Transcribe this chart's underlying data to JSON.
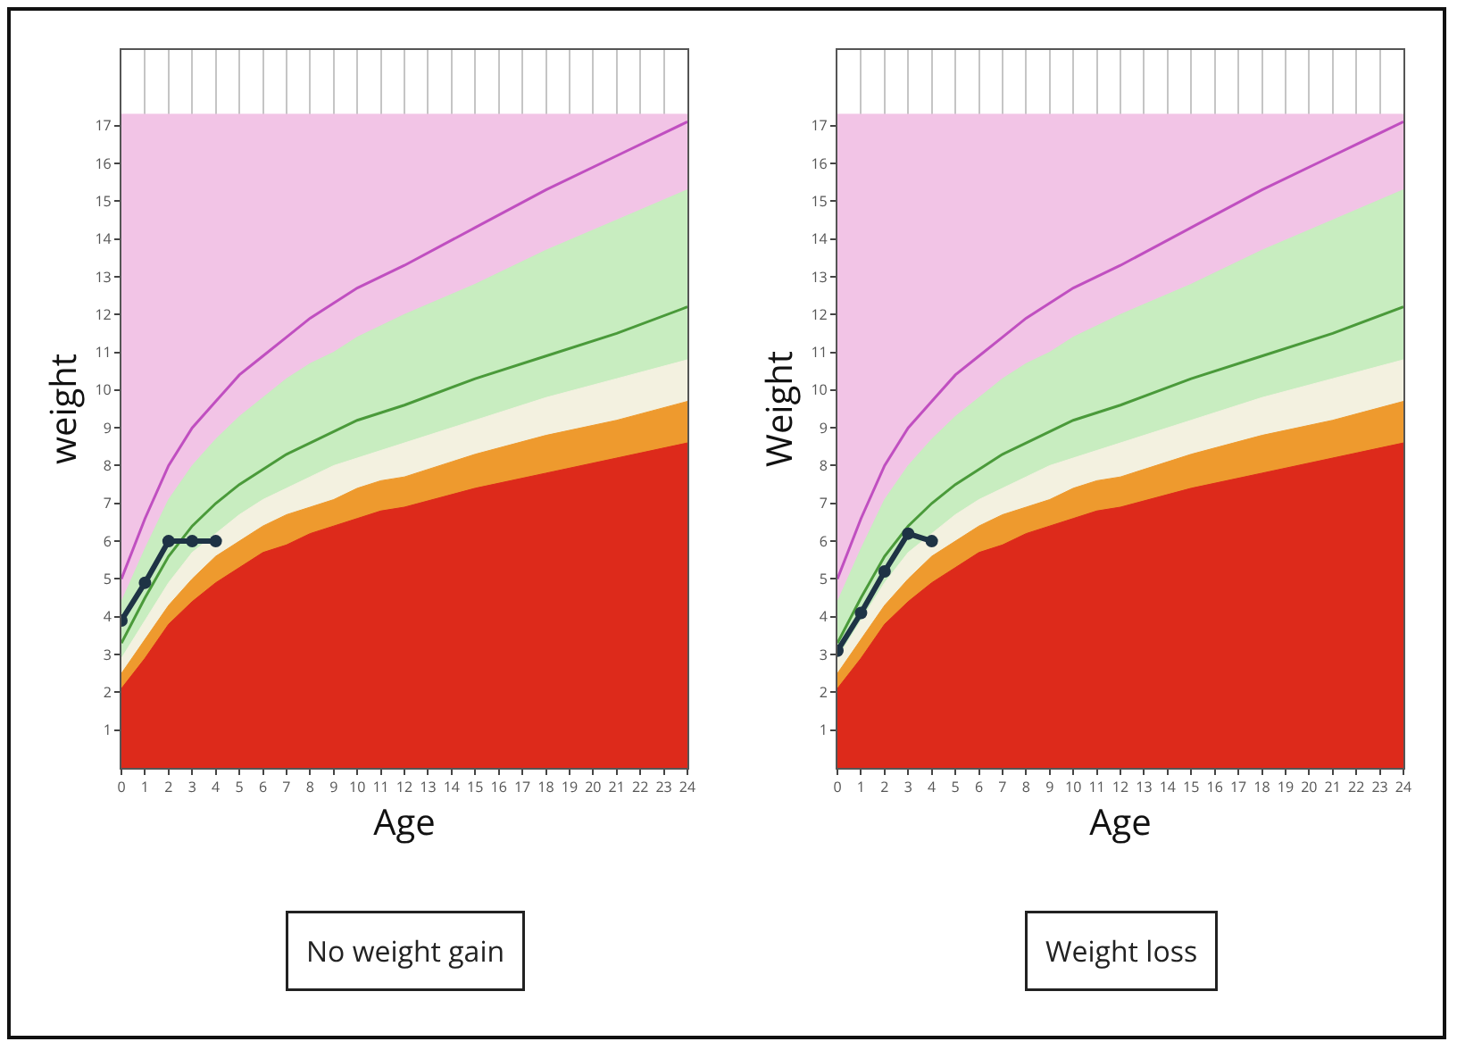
{
  "chart_data": [
    {
      "type": "area",
      "title": "No weight gain",
      "xlabel": "Age",
      "ylabel": "weight",
      "x": [
        0,
        1,
        2,
        3,
        4,
        5,
        6,
        7,
        8,
        9,
        10,
        11,
        12,
        15,
        18,
        21,
        24
      ],
      "xlim": [
        0,
        24
      ],
      "ylim": [
        0,
        19
      ],
      "xticks": [
        0,
        1,
        2,
        3,
        4,
        5,
        6,
        7,
        8,
        9,
        10,
        11,
        12,
        13,
        14,
        15,
        16,
        17,
        18,
        19,
        20,
        21,
        22,
        23,
        24
      ],
      "yticks": [
        1,
        2,
        3,
        4,
        5,
        6,
        7,
        8,
        9,
        10,
        11,
        12,
        13,
        14,
        15,
        16,
        17
      ],
      "grid": true,
      "series": [
        {
          "color": "#f2c4e6",
          "values": [
            17.3,
            17.3,
            17.3,
            17.3,
            17.3,
            17.3,
            17.3,
            17.3,
            17.3,
            17.3,
            17.3,
            17.3,
            17.3,
            17.3,
            17.3,
            17.3,
            17.3
          ]
        },
        {
          "color": "#c8edc0",
          "values": [
            4.4,
            5.8,
            7.1,
            8.0,
            8.7,
            9.3,
            9.8,
            10.3,
            10.7,
            11.0,
            11.4,
            11.7,
            12.0,
            12.8,
            13.7,
            14.5,
            15.3
          ]
        },
        {
          "color": "#f3f1e0",
          "values": [
            2.9,
            3.9,
            4.9,
            5.7,
            6.2,
            6.7,
            7.1,
            7.4,
            7.7,
            8.0,
            8.2,
            8.4,
            8.6,
            9.2,
            9.8,
            10.3,
            10.8
          ]
        },
        {
          "color": "#ee9a2e",
          "values": [
            2.5,
            3.4,
            4.3,
            5.0,
            5.6,
            6.0,
            6.4,
            6.7,
            6.9,
            7.1,
            7.4,
            7.6,
            7.7,
            8.3,
            8.8,
            9.2,
            9.7
          ]
        },
        {
          "color": "#dd2a1b",
          "values": [
            2.1,
            2.9,
            3.8,
            4.4,
            4.9,
            5.3,
            5.7,
            5.9,
            6.2,
            6.4,
            6.6,
            6.8,
            6.9,
            7.4,
            7.8,
            8.2,
            8.6
          ]
        },
        {
          "type": "line",
          "color": "#c04fc0",
          "values": [
            5.0,
            6.6,
            8.0,
            9.0,
            9.7,
            10.4,
            10.9,
            11.4,
            11.9,
            12.3,
            12.7,
            13.0,
            13.3,
            14.3,
            15.3,
            16.2,
            17.1
          ]
        },
        {
          "type": "line",
          "color": "#4a9a3a",
          "values": [
            3.3,
            4.5,
            5.6,
            6.4,
            7.0,
            7.5,
            7.9,
            8.3,
            8.6,
            8.9,
            9.2,
            9.4,
            9.6,
            10.3,
            10.9,
            11.5,
            12.2
          ]
        },
        {
          "type": "line",
          "color": "#1e3345",
          "marker": "circle",
          "x": [
            0,
            1,
            2,
            3,
            4
          ],
          "values": [
            3.9,
            4.9,
            6.0,
            6.0,
            6.0
          ]
        }
      ]
    },
    {
      "type": "area",
      "title": "Weight loss",
      "xlabel": "Age",
      "ylabel": "Weight",
      "x": [
        0,
        1,
        2,
        3,
        4,
        5,
        6,
        7,
        8,
        9,
        10,
        11,
        12,
        15,
        18,
        21,
        24
      ],
      "xlim": [
        0,
        24
      ],
      "ylim": [
        0,
        19
      ],
      "xticks": [
        0,
        1,
        2,
        3,
        4,
        5,
        6,
        7,
        8,
        9,
        10,
        11,
        12,
        13,
        14,
        15,
        16,
        17,
        18,
        19,
        20,
        21,
        22,
        23,
        24
      ],
      "yticks": [
        1,
        2,
        3,
        4,
        5,
        6,
        7,
        8,
        9,
        10,
        11,
        12,
        13,
        14,
        15,
        16,
        17
      ],
      "grid": true,
      "series": [
        {
          "color": "#f2c4e6",
          "values": [
            17.3,
            17.3,
            17.3,
            17.3,
            17.3,
            17.3,
            17.3,
            17.3,
            17.3,
            17.3,
            17.3,
            17.3,
            17.3,
            17.3,
            17.3,
            17.3,
            17.3
          ]
        },
        {
          "color": "#c8edc0",
          "values": [
            4.4,
            5.8,
            7.1,
            8.0,
            8.7,
            9.3,
            9.8,
            10.3,
            10.7,
            11.0,
            11.4,
            11.7,
            12.0,
            12.8,
            13.7,
            14.5,
            15.3
          ]
        },
        {
          "color": "#f3f1e0",
          "values": [
            2.9,
            3.9,
            4.9,
            5.7,
            6.2,
            6.7,
            7.1,
            7.4,
            7.7,
            8.0,
            8.2,
            8.4,
            8.6,
            9.2,
            9.8,
            10.3,
            10.8
          ]
        },
        {
          "color": "#ee9a2e",
          "values": [
            2.5,
            3.4,
            4.3,
            5.0,
            5.6,
            6.0,
            6.4,
            6.7,
            6.9,
            7.1,
            7.4,
            7.6,
            7.7,
            8.3,
            8.8,
            9.2,
            9.7
          ]
        },
        {
          "color": "#dd2a1b",
          "values": [
            2.1,
            2.9,
            3.8,
            4.4,
            4.9,
            5.3,
            5.7,
            5.9,
            6.2,
            6.4,
            6.6,
            6.8,
            6.9,
            7.4,
            7.8,
            8.2,
            8.6
          ]
        },
        {
          "type": "line",
          "color": "#c04fc0",
          "values": [
            5.0,
            6.6,
            8.0,
            9.0,
            9.7,
            10.4,
            10.9,
            11.4,
            11.9,
            12.3,
            12.7,
            13.0,
            13.3,
            14.3,
            15.3,
            16.2,
            17.1
          ]
        },
        {
          "type": "line",
          "color": "#4a9a3a",
          "values": [
            3.3,
            4.5,
            5.6,
            6.4,
            7.0,
            7.5,
            7.9,
            8.3,
            8.6,
            8.9,
            9.2,
            9.4,
            9.6,
            10.3,
            10.9,
            11.5,
            12.2
          ]
        },
        {
          "type": "line",
          "color": "#1e3345",
          "marker": "circle",
          "x": [
            0,
            1,
            2,
            3,
            4
          ],
          "values": [
            3.1,
            4.1,
            5.2,
            6.2,
            6.0
          ]
        }
      ]
    }
  ]
}
